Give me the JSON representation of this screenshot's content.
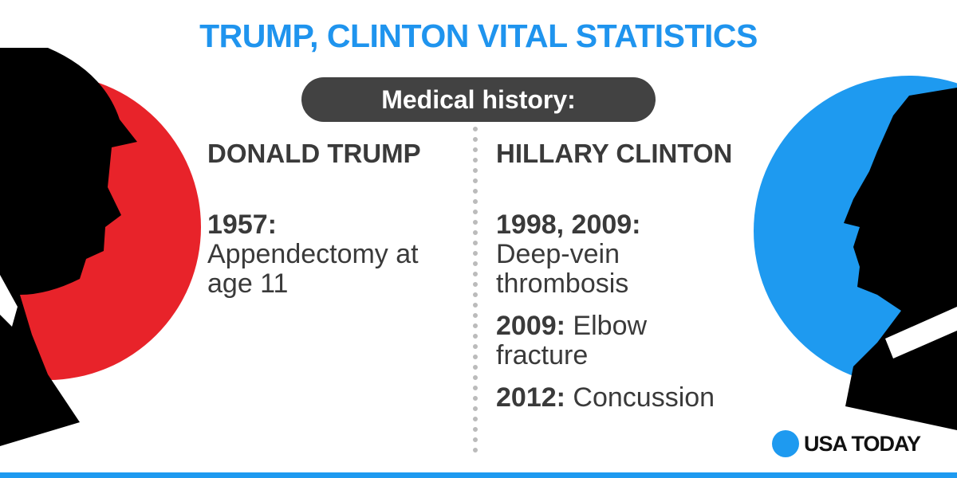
{
  "title": "TRUMP, CLINTON VITAL STATISTICS",
  "section": "Medical history:",
  "columns": [
    {
      "name": "DONALD TRUMP",
      "entries": [
        {
          "year": "1957:",
          "text": "Appendectomy at age 11"
        }
      ]
    },
    {
      "name": "HILLARY CLINTON",
      "entries": [
        {
          "year": "1998, 2009:",
          "text": "Deep-vein thrombosis"
        },
        {
          "year": "2009:",
          "text": "Elbow fracture"
        },
        {
          "year": "2012:",
          "text": "Concussion"
        }
      ]
    }
  ],
  "brand": "USA TODAY"
}
